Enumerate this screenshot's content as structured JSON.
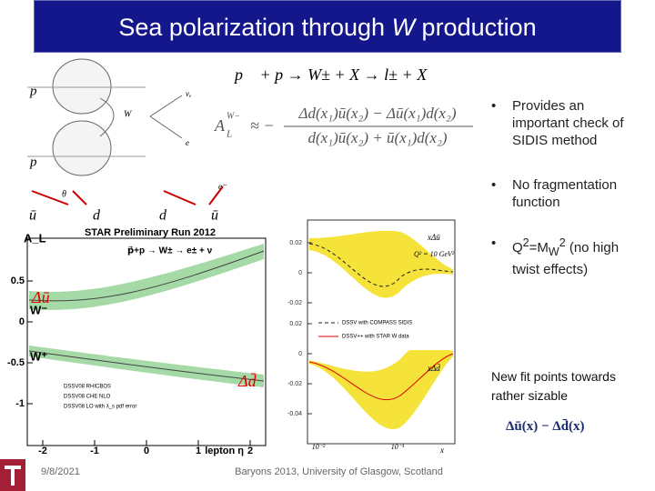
{
  "header": {
    "title": [
      "Sea polarization through ",
      "W",
      " production"
    ]
  },
  "bullets": [
    {
      "text": "Provides an important check of SIDIS method"
    },
    {
      "text": "No fragmentation function"
    },
    {
      "parts": [
        "Q",
        "2",
        "=M",
        "W",
        "2",
        " (no high twist effects)"
      ]
    }
  ],
  "note": "New fit points towards rather sizable",
  "formula_note": "Δū(x) − Δd̄(x)",
  "reaction": "p⃗ + p → W± + X → l± + X",
  "formula": {
    "lhs": "A",
    "lhs_sub": "L",
    "lhs_sup": "W−",
    "approx": "≈ −",
    "numerator": "Δd(x₁)ū(x₂) − Δū(x₁)d(x₂)",
    "denominator": "d(x₁)ū(x₂) + ū(x₁)d(x₂)"
  },
  "diagram": {
    "hadrons": [
      "p",
      "p"
    ],
    "boson": "W",
    "leptons": [
      "νₑ",
      "e"
    ],
    "quarks": [
      "ū",
      "d",
      "d",
      "ū"
    ],
    "angle": "θ",
    "electron": "e⁻"
  },
  "star_plot": {
    "title": "STAR   Preliminary   Run 2012",
    "ylabel": "A_L",
    "xlabel": "lepton η",
    "process": "p⃗+p → W± → e± + ν",
    "channels": [
      "W⁻",
      "W⁺"
    ],
    "sea_labels": [
      "Δū",
      "Δd̄"
    ],
    "xticks": [
      -2,
      -1,
      0,
      1,
      2
    ],
    "yticks": [
      0.5,
      0,
      -0.5,
      -1
    ],
    "legend": [
      "DSSV08 RHICBOS",
      "DSSV08 CHE NLO",
      "DSSV08 LO with λ_s pdf error"
    ]
  },
  "dssv_plot": {
    "labels": [
      "xΔū",
      "Q² = 10 GeV²",
      "xΔd̄",
      "x"
    ],
    "upper_yticks": [
      0.02,
      0,
      -0.02
    ],
    "lower_yticks": [
      0.02,
      0,
      -0.02,
      -0.04
    ],
    "xticks": [
      "10⁻²",
      "10⁻¹"
    ],
    "legend": [
      "DSSV with COMPASS SIDIS",
      "DSSV++ with STAR W data"
    ]
  },
  "footer": {
    "date": "9/8/2021",
    "event": "Baryons 2013, University of Glasgow, Scotland"
  }
}
